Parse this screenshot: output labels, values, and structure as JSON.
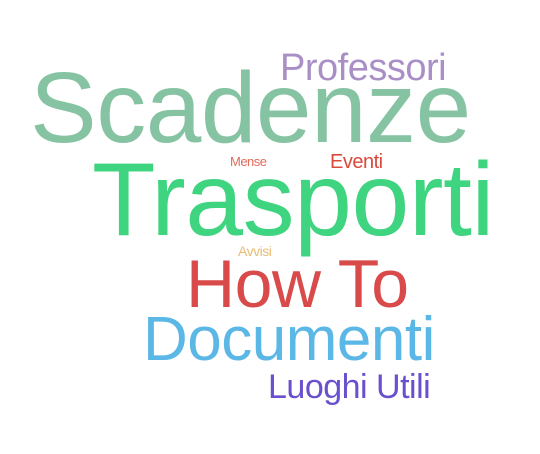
{
  "words": [
    {
      "id": "professori",
      "text": "Professori",
      "color": "#a98fc6"
    },
    {
      "id": "scadenze",
      "text": "Scadenze",
      "color": "#86c3a3"
    },
    {
      "id": "mense",
      "text": "Mense",
      "color": "#e36b5a"
    },
    {
      "id": "eventi",
      "text": "Eventi",
      "color": "#d94a3c"
    },
    {
      "id": "trasporti",
      "text": "Trasporti",
      "color": "#3fd47f"
    },
    {
      "id": "avvisi",
      "text": "Avvisi",
      "color": "#e9bd76"
    },
    {
      "id": "howto",
      "text": "How To",
      "color": "#d94a4a"
    },
    {
      "id": "documenti",
      "text": "Documenti",
      "color": "#5bb8e6"
    },
    {
      "id": "luoghi",
      "text": "Luoghi Utili",
      "color": "#6a4fcf"
    }
  ]
}
